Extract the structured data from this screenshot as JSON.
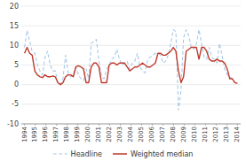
{
  "chart_data": {
    "type": "line",
    "x": [
      1994,
      1994.241,
      1994.4819,
      1994.7229,
      1994.9639,
      1995.2048,
      1995.4458,
      1995.6867,
      1995.9277,
      1996.1687,
      1996.4096,
      1996.6506,
      1996.8916,
      1997.1325,
      1997.3735,
      1997.6145,
      1997.8554,
      1998.0964,
      1998.3373,
      1998.5783,
      1998.8193,
      1999.0602,
      1999.3012,
      1999.5422,
      1999.7831,
      2000.0241,
      2000.2651,
      2000.506,
      2000.747,
      2000.988,
      2001.2289,
      2001.4699,
      2001.7108,
      2001.9518,
      2002.1928,
      2002.4337,
      2002.6747,
      2002.9157,
      2003.1566,
      2003.3976,
      2003.6386,
      2003.8795,
      2004.1205,
      2004.3614,
      2004.6024,
      2004.8434,
      2005.0843,
      2005.3253,
      2005.5663,
      2005.8072,
      2006.0482,
      2006.2892,
      2006.5301,
      2006.7711,
      2007.012,
      2007.253,
      2007.494,
      2007.7349,
      2007.9759,
      2008.2169,
      2008.4578,
      2008.6988,
      2008.9398,
      2009.1807,
      2009.4217,
      2009.6627,
      2009.9036,
      2010.1446,
      2010.3855,
      2010.6265,
      2010.8675,
      2011.1084,
      2011.3494,
      2011.5904,
      2011.8313,
      2012.0723,
      2012.3133,
      2012.5542,
      2012.7952,
      2013.0361,
      2013.2771,
      2013.5181,
      2013.759,
      2014
    ],
    "xlim": [
      1993.7,
      2014.3
    ],
    "xticks": [
      1994,
      1995,
      1996,
      1997,
      1998,
      1999,
      2000,
      2001,
      2002,
      2003,
      2004,
      2005,
      2006,
      2007,
      2008,
      2009,
      2010,
      2011,
      2012,
      2013,
      2014
    ],
    "ylim": [
      -10,
      20
    ],
    "yticks": [
      -10,
      -5,
      0,
      5,
      10,
      15,
      20
    ],
    "grid": true,
    "legend": "bottom",
    "series": [
      {
        "name": "Headline",
        "color": "#a8c8e8",
        "line_style": "dashed",
        "values": [
          9.5,
          13.8,
          11.0,
          8.5,
          8.0,
          5.0,
          3.5,
          2.5,
          7.0,
          8.5,
          5.0,
          3.5,
          3.5,
          0.5,
          0.0,
          1.5,
          7.5,
          3.0,
          2.0,
          2.5,
          4.5,
          2.5,
          1.5,
          1.0,
          4.0,
          1.5,
          10.5,
          11.0,
          11.5,
          6.0,
          2.0,
          1.5,
          4.0,
          5.0,
          6.5,
          7.0,
          9.0,
          6.5,
          5.0,
          5.5,
          6.0,
          4.0,
          5.5,
          6.0,
          8.0,
          4.5,
          3.5,
          3.0,
          6.5,
          7.0,
          7.5,
          8.0,
          8.0,
          7.5,
          5.5,
          6.0,
          7.5,
          10.5,
          14.0,
          13.5,
          -6.5,
          -1.5,
          12.0,
          14.0,
          12.5,
          9.5,
          9.0,
          10.5,
          14.0,
          10.5,
          7.0,
          6.5,
          9.5,
          7.0,
          6.5,
          5.5,
          10.5,
          7.5,
          4.0,
          2.5,
          2.0,
          1.5,
          0.5,
          0.3
        ]
      },
      {
        "name": "Weighted median",
        "color": "#c0392b",
        "line_style": "solid",
        "values": [
          8.0,
          9.5,
          8.0,
          7.5,
          3.5,
          2.5,
          2.0,
          1.8,
          2.5,
          2.0,
          2.0,
          2.2,
          2.0,
          0.5,
          0.0,
          0.5,
          2.0,
          2.5,
          2.5,
          2.0,
          4.5,
          4.8,
          4.5,
          4.0,
          0.5,
          0.5,
          4.5,
          5.5,
          5.5,
          4.5,
          0.5,
          0.5,
          0.5,
          5.0,
          5.5,
          5.5,
          5.0,
          5.5,
          5.5,
          5.5,
          4.5,
          3.5,
          4.0,
          4.5,
          4.5,
          5.0,
          5.5,
          5.0,
          4.5,
          4.5,
          5.0,
          5.5,
          8.0,
          8.0,
          7.5,
          7.5,
          8.0,
          8.5,
          9.5,
          8.5,
          3.5,
          0.5,
          2.0,
          8.5,
          9.0,
          9.5,
          9.5,
          9.5,
          6.5,
          9.5,
          9.5,
          8.5,
          6.5,
          6.0,
          6.0,
          6.5,
          6.0,
          6.0,
          5.5,
          4.0,
          1.5,
          1.5,
          0.5,
          0.3
        ]
      }
    ]
  }
}
